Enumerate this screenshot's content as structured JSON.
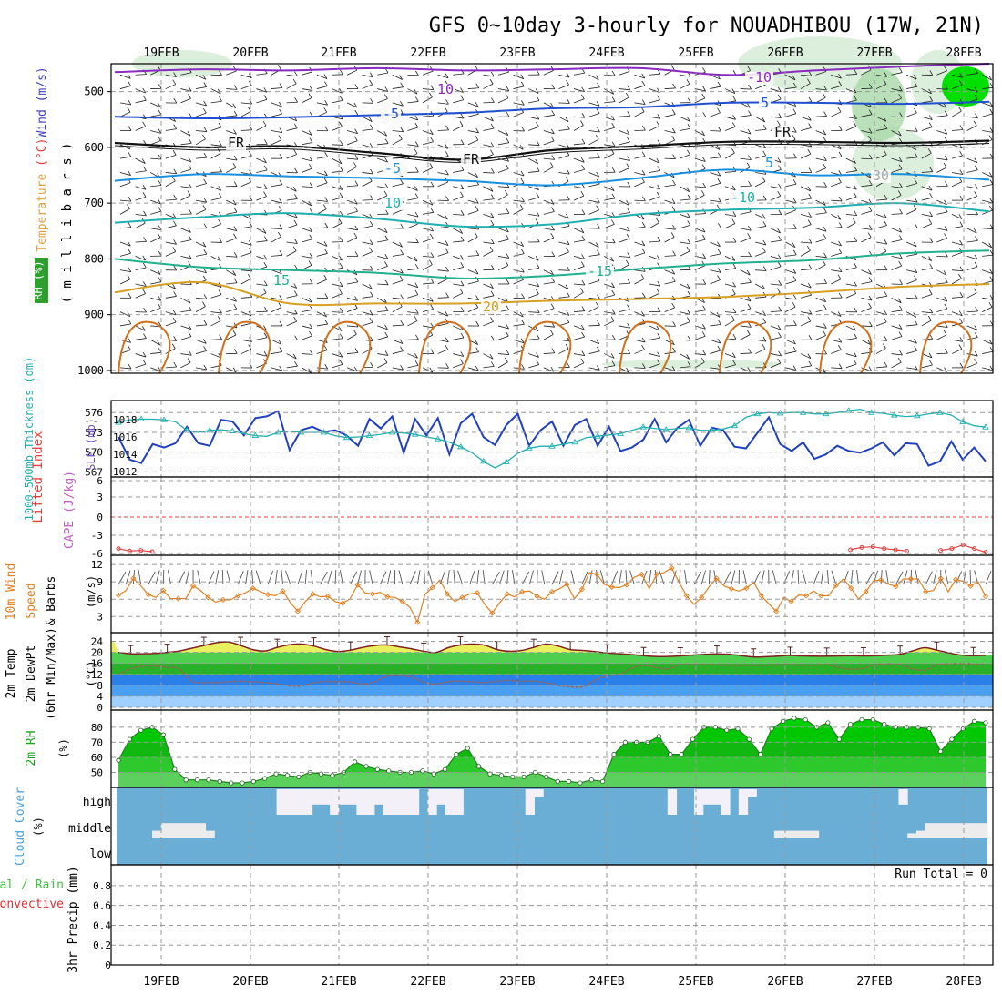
{
  "title": "GFS 0~10day 3-hourly for NOUADHIBOU (17W, 21N)",
  "colors": {
    "temp": "#e07050",
    "rh": "#40b040",
    "cape": "#c060c0",
    "slp": "#2040c0",
    "thick": "#20b0b0",
    "wind10": "#e08020",
    "cloud": "#6aaed6",
    "precip_total": "#40c040",
    "precip_conv": "#e03030"
  },
  "dates": [
    "19FEB",
    "20FEB",
    "21FEB",
    "22FEB",
    "23FEB",
    "24FEB",
    "25FEB",
    "26FEB",
    "27FEB",
    "28FEB"
  ],
  "chart_data": [
    {
      "panel": "upper-air",
      "type": "contour",
      "y_ticks": [
        500,
        600,
        700,
        800,
        900,
        1000
      ],
      "ylabel_parts": [
        "RH (%)",
        "Temperature",
        "(°C)",
        "Wind (m/s)"
      ],
      "ylabel_units": "( m i l l i b a r s )",
      "contour_labels": [
        "-10",
        "10",
        "-5",
        "5",
        "FR",
        "FR",
        "FR",
        "-5",
        "5",
        "-10",
        "10",
        "15",
        "-15",
        "20",
        "30"
      ],
      "isotherms": [
        {
          "label": "-10",
          "color": "#8a2ac0",
          "p": [
            465,
            460,
            462,
            458,
            462,
            460,
            458,
            470,
            462,
            455,
            450
          ]
        },
        {
          "label": "-5",
          "color": "#2050d0",
          "p": [
            545,
            548,
            546,
            542,
            538,
            530,
            528,
            520,
            520,
            522,
            518
          ]
        },
        {
          "label": "FR",
          "color": "#111111",
          "p": [
            592,
            600,
            598,
            610,
            622,
            605,
            598,
            590,
            590,
            592,
            588
          ]
        },
        {
          "label": "5",
          "color": "#1890e0",
          "p": [
            660,
            648,
            652,
            655,
            660,
            668,
            655,
            640,
            650,
            648,
            658
          ]
        },
        {
          "label": "10",
          "color": "#20b0b0",
          "p": [
            735,
            725,
            718,
            728,
            742,
            738,
            720,
            712,
            708,
            700,
            715
          ]
        },
        {
          "label": "15",
          "color": "#20b090",
          "p": [
            800,
            815,
            820,
            825,
            835,
            830,
            818,
            808,
            802,
            790,
            785
          ]
        },
        {
          "label": "20",
          "color": "#d8a020",
          "p": [
            860,
            842,
            880,
            880,
            880,
            875,
            872,
            868,
            860,
            850,
            845
          ]
        }
      ]
    },
    {
      "panel": "slp-thickness",
      "type": "line",
      "y_ticks_left": [
        567,
        570,
        573,
        576
      ],
      "y_ticks_right": [
        1012,
        1014,
        1016,
        1018
      ],
      "ylabel_thick": "1000-500mb Thickness (dm)",
      "ylabel_slp": "SLP (mb)",
      "series": [
        {
          "name": "SLP",
          "values": [
            1016.0,
            1013.4,
            1013.0,
            1015.2,
            1014.8,
            1015.3,
            1017.2,
            1015.3,
            1015.0,
            1018.0,
            1017.8,
            1016.2,
            1018.2,
            1018.4,
            1019.0,
            1014.5,
            1016.8,
            1017.2,
            1016.6,
            1016.8,
            1016.2,
            1015.0,
            1018.1,
            1017.0,
            1018.4,
            1014.2,
            1018.1,
            1016.2,
            1018.2,
            1014.0,
            1017.6,
            1018.7,
            1016.0,
            1015.1,
            1017.4,
            1018.7,
            1015.0,
            1016.8,
            1017.8,
            1015.0,
            1017.4,
            1018.1,
            1015.0,
            1017.2,
            1014.4,
            1014.8,
            1015.7,
            1018.1,
            1015.4,
            1017.1,
            1018.0,
            1015.0,
            1017.1,
            1016.8,
            1014.9,
            1014.7,
            1016.5,
            1018.3,
            1015.2,
            1014.4,
            1015.4,
            1013.5,
            1014.0,
            1015.0,
            1014.4,
            1014.2,
            1014.7,
            1015.4,
            1013.9,
            1015.3,
            1015.2,
            1012.7,
            1013.2,
            1015.5,
            1013.4,
            1014.8,
            1013.2
          ]
        },
        {
          "name": "Thickness",
          "values": [
            574.5,
            574.9,
            575.0,
            575.0,
            574.9,
            574.6,
            573.3,
            573.0,
            573.3,
            573.4,
            573.2,
            572.8,
            572.5,
            572.4,
            573.0,
            573.2,
            573.0,
            573.0,
            573.0,
            572.5,
            572.2,
            572.3,
            572.5,
            572.7,
            573.0,
            572.9,
            572.7,
            572.3,
            572.0,
            571.5,
            570.8,
            569.9,
            568.6,
            567.6,
            568.5,
            569.8,
            570.6,
            570.9,
            570.9,
            571.2,
            571.5,
            572.2,
            572.4,
            572.6,
            572.8,
            573.3,
            573.8,
            573.6,
            573.4,
            573.6,
            573.7,
            573.3,
            573.3,
            573.5,
            574.0,
            575.3,
            575.8,
            576.0,
            575.9,
            576.0,
            576.0,
            575.8,
            575.8,
            576.0,
            576.3,
            576.5,
            576.0,
            575.9,
            575.6,
            575.4,
            575.5,
            575.8,
            576.0,
            575.6,
            574.6,
            574.0,
            573.8
          ]
        }
      ]
    },
    {
      "panel": "cape-li",
      "type": "line",
      "y_ticks": [
        "6",
        "3",
        "0",
        "-3",
        "-6"
      ],
      "ylabel_li": "Lifted Index",
      "ylabel_cape": "CAPE (J/kg)",
      "series": [
        {
          "name": "LI",
          "values": [
            5.2,
            5.6,
            5.5,
            5.7,
            6.2,
            6.4,
            6.3,
            6.5,
            6.5,
            6.5,
            6.5,
            6.5,
            6.4,
            6.4,
            6.3,
            6.3,
            6.2,
            6.1,
            6.0,
            6.1,
            6.2,
            6.1,
            6.0,
            6.1,
            6.2,
            6.0,
            6.1,
            6.3,
            6.4,
            6.4,
            6.4,
            6.2,
            6.1,
            6.2,
            6.3,
            6.5,
            6.5,
            6.4,
            6.4,
            6.5,
            6.4,
            6.4,
            6.5,
            6.5,
            6.4,
            6.2,
            6.2,
            6.3,
            6.4,
            6.4,
            6.5,
            6.5,
            6.4,
            6.4,
            6.4,
            6.3,
            6.3,
            6.2,
            6.2,
            6.1,
            6.2,
            6.3,
            6.4,
            6.5,
            6.5,
            5.4,
            5.0,
            4.9,
            5.2,
            5.4,
            5.6,
            6.3,
            6.0,
            5.5,
            5.2,
            4.6,
            5.2,
            5.8
          ]
        }
      ]
    },
    {
      "panel": "wind10m",
      "type": "line",
      "y_ticks": [
        3,
        6,
        9,
        12
      ],
      "ylabel_a": "10m Wind",
      "ylabel_b": "Speed",
      "ylabel_c": "& Barbs",
      "ylabel_unit": "(m/s)",
      "series": [
        {
          "name": "Speed",
          "values": [
            6.7,
            7.5,
            9.6,
            8.3,
            6.8,
            6.3,
            7.5,
            6.1,
            6.1,
            6.1,
            8.3,
            7.5,
            6.3,
            5.5,
            5.9,
            5.9,
            6.6,
            7.1,
            7.9,
            7.3,
            6.8,
            6.6,
            7.4,
            5.4,
            3.9,
            5.6,
            6.9,
            6.4,
            6.5,
            5.6,
            5.3,
            6.1,
            8.5,
            7.1,
            6.9,
            7.2,
            6.4,
            6.3,
            5.6,
            4.6,
            2.0,
            6.8,
            8.0,
            9.3,
            6.9,
            5.6,
            6.3,
            6.9,
            7.1,
            5.1,
            3.6,
            5.4,
            6.9,
            6.4,
            7.3,
            7.4,
            6.5,
            6.0,
            7.3,
            7.8,
            8.6,
            6.1,
            7.7,
            10.6,
            10.3,
            8.6,
            8.1,
            8.0,
            8.5,
            9.8,
            10.3,
            7.8,
            10.3,
            10.6,
            11.4,
            8.9,
            6.6,
            5.1,
            6.3,
            8.1,
            9.6,
            8.3,
            7.8,
            7.4,
            7.9,
            8.9,
            6.6,
            5.2,
            3.9,
            6.3,
            5.6,
            6.7,
            6.6,
            7.4,
            6.6,
            6.6,
            8.4,
            9.5,
            7.9,
            6.0,
            7.3,
            9.2,
            9.3,
            8.6,
            8.2,
            9.5,
            9.5,
            9.5,
            7.3,
            7.5,
            9.6,
            7.3,
            9.4,
            9.1,
            8.3,
            9.0,
            6.5
          ]
        }
      ]
    },
    {
      "panel": "temp2m",
      "type": "area",
      "y_ticks": [
        0,
        4,
        8,
        12,
        16,
        20,
        24
      ],
      "ylabel_a": "2m Temp",
      "ylabel_b": "2m DewPt",
      "ylabel_c": "(6hr Min/Max)",
      "ylabel_unit": "(°C)",
      "series": [
        {
          "name": "Temp",
          "values": [
            20.0,
            19.5,
            19.5,
            19.6,
            20.0,
            20.5,
            21.5,
            22.5,
            23.5,
            23.8,
            22.5,
            21.0,
            20.5,
            21.8,
            22.8,
            23.0,
            22.3,
            21.0,
            20.3,
            20.8,
            21.8,
            22.5,
            22.7,
            22.0,
            21.3,
            20.4,
            20.0,
            21.7,
            22.7,
            23.0,
            22.6,
            21.0,
            20.4,
            20.7,
            21.8,
            23.0,
            22.3,
            21.0,
            20.7,
            20.3,
            19.8,
            19.5,
            19.2,
            18.8,
            18.5,
            18.5,
            18.7,
            19.0,
            19.3,
            19.4,
            19.3,
            18.8,
            18.3,
            18.4,
            18.6,
            18.9,
            18.7,
            18.6,
            18.6,
            18.7,
            18.8,
            18.7,
            18.8,
            19.0,
            19.3,
            20.5,
            21.7,
            20.8,
            19.8,
            19.0,
            18.8,
            18.9
          ]
        },
        {
          "name": "DewPt",
          "values": [
            12.0,
            14.0,
            15.0,
            15.0,
            14.5,
            14.0,
            9.5,
            9.0,
            9.0,
            9.3,
            9.5,
            9.3,
            9.0,
            8.5,
            7.8,
            7.8,
            9.0,
            9.4,
            9.3,
            9.3,
            8.5,
            9.3,
            11.3,
            11.5,
            11.0,
            9.2,
            8.5,
            9.3,
            9.5,
            9.3,
            9.0,
            9.5,
            9.8,
            9.5,
            9.5,
            9.0,
            8.0,
            7.5,
            7.5,
            9.7,
            11.5,
            12.0,
            14.2,
            15.3,
            14.5,
            14.0,
            15.5,
            15.5,
            15.5,
            15.5,
            15.3,
            15.3,
            15.3,
            15.3,
            15.5,
            15.5,
            15.3,
            15.3,
            15.5,
            14.5,
            13.8,
            14.2,
            15.5,
            15.8,
            15.5,
            14.0,
            13.5,
            15.5,
            15.8,
            16.0,
            15.8,
            15.4
          ]
        }
      ]
    },
    {
      "panel": "rh2m",
      "type": "area",
      "y_ticks": [
        50,
        60,
        70,
        80
      ],
      "ylabel_a": "2m RH",
      "ylabel_unit": "(%)",
      "series": [
        {
          "name": "RH",
          "values": [
            58,
            72,
            78,
            80,
            75,
            52,
            45,
            45,
            45,
            44,
            43,
            43,
            44,
            46,
            49,
            48,
            47,
            50,
            49,
            48,
            50,
            57,
            54,
            52,
            51,
            50,
            50,
            51,
            49,
            52,
            62,
            66,
            54,
            49,
            48,
            47,
            47,
            50,
            47,
            44,
            44,
            43,
            45,
            44,
            62,
            70,
            70,
            70,
            74,
            62,
            62,
            72,
            80,
            80,
            78,
            79,
            72,
            62,
            79,
            84,
            86,
            85,
            80,
            83,
            72,
            82,
            85,
            85,
            82,
            80,
            80,
            80,
            79,
            64,
            72,
            79,
            84,
            83
          ]
        }
      ]
    },
    {
      "panel": "cloud",
      "type": "heatmap",
      "y_ticks": [
        "high",
        "middle",
        "low"
      ],
      "ylabel_a": "Cloud Cover",
      "ylabel_unit": "(%)",
      "high": [
        0,
        0,
        0,
        0,
        0,
        0,
        0,
        0,
        0,
        0,
        0,
        0,
        0,
        0,
        0,
        0,
        0,
        0,
        100,
        100,
        100,
        100,
        60,
        60,
        100,
        60,
        60,
        100,
        100,
        60,
        100,
        100,
        100,
        100,
        0,
        100,
        60,
        100,
        100,
        0,
        0,
        0,
        0,
        0,
        0,
        0,
        100,
        30,
        0,
        0,
        0,
        0,
        0,
        0,
        0,
        0,
        0,
        0,
        0,
        0,
        0,
        0,
        100,
        0,
        0,
        100,
        60,
        60,
        100,
        0,
        100,
        30,
        0,
        0,
        0,
        0,
        0,
        0,
        0,
        0,
        0,
        0,
        0,
        0,
        0,
        0,
        0,
        0,
        60,
        0,
        0,
        0,
        0,
        0,
        0,
        0,
        0,
        0
      ],
      "middle": [
        0,
        0,
        0,
        0,
        30,
        60,
        60,
        60,
        60,
        60,
        30,
        0,
        0,
        0,
        0,
        0,
        0,
        0,
        0,
        0,
        0,
        0,
        0,
        0,
        0,
        0,
        0,
        0,
        0,
        0,
        0,
        0,
        0,
        0,
        0,
        0,
        0,
        0,
        0,
        0,
        0,
        0,
        0,
        0,
        0,
        0,
        0,
        0,
        0,
        0,
        0,
        0,
        0,
        0,
        0,
        0,
        0,
        0,
        0,
        0,
        0,
        0,
        0,
        0,
        0,
        0,
        0,
        0,
        0,
        0,
        0,
        0,
        0,
        0,
        30,
        30,
        30,
        30,
        30,
        0,
        0,
        0,
        0,
        0,
        0,
        0,
        0,
        0,
        0,
        20,
        30,
        60,
        60,
        60,
        60,
        60,
        60,
        60
      ]
    },
    {
      "panel": "precip",
      "type": "bar",
      "y_ticks": [
        "0",
        "0.2",
        "0.4",
        "0.6",
        "0.8"
      ],
      "ylabel_total": "Total / Rain",
      "ylabel_conv": "Convective",
      "ylabel_unit": "3hr Precip (mm)",
      "run_total": "Run Total = 0",
      "values": []
    }
  ]
}
